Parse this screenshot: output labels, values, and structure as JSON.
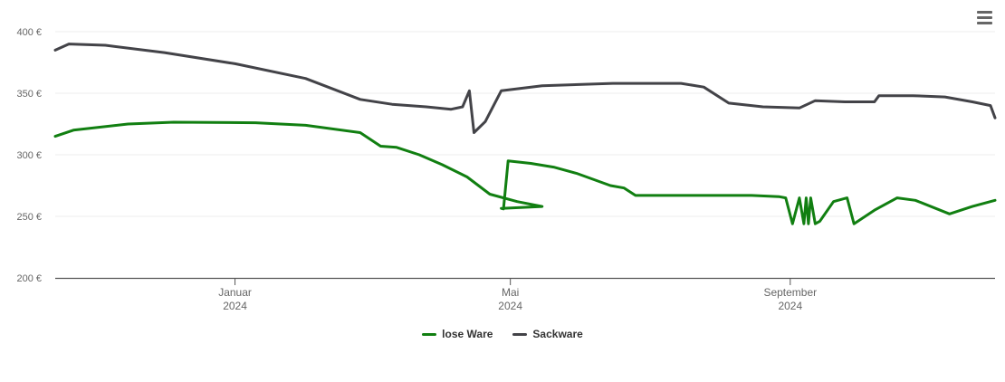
{
  "chart_data": {
    "type": "line",
    "y_ticks": [
      "200 €",
      "250 €",
      "300 €",
      "350 €",
      "400 €"
    ],
    "ylim": [
      200,
      400
    ],
    "xlim": [
      "2023-10-14",
      "2024-11-30"
    ],
    "x_ticks": [
      {
        "date": "2024-01-01",
        "month": "Januar",
        "year": "2024"
      },
      {
        "date": "2024-05-01",
        "month": "Mai",
        "year": "2024"
      },
      {
        "date": "2024-09-01",
        "month": "September",
        "year": "2024"
      }
    ],
    "grid": true,
    "legend_position": "bottom-center",
    "series": [
      {
        "name": "lose Ware",
        "color": "#117f11",
        "points": [
          [
            "2023-10-14",
            315
          ],
          [
            "2023-10-22",
            320
          ],
          [
            "2023-11-15",
            325
          ],
          [
            "2023-12-05",
            326.5
          ],
          [
            "2024-01-10",
            326
          ],
          [
            "2024-02-01",
            324
          ],
          [
            "2024-02-25",
            318
          ],
          [
            "2024-03-05",
            307
          ],
          [
            "2024-03-12",
            306
          ],
          [
            "2024-03-22",
            300
          ],
          [
            "2024-04-01",
            292
          ],
          [
            "2024-04-12",
            282
          ],
          [
            "2024-04-22",
            268
          ],
          [
            "2024-05-04",
            262
          ],
          [
            "2024-05-15",
            258
          ],
          [
            "2024-04-27",
            256.5
          ],
          [
            "2024-04-28",
            256
          ],
          [
            "2024-04-30",
            295
          ],
          [
            "2024-05-10",
            293
          ],
          [
            "2024-05-20",
            290
          ],
          [
            "2024-05-30",
            285
          ],
          [
            "2024-06-14",
            275
          ],
          [
            "2024-06-20",
            273
          ],
          [
            "2024-06-25",
            267
          ],
          [
            "2024-07-15",
            267
          ],
          [
            "2024-08-15",
            267
          ],
          [
            "2024-08-27",
            266
          ],
          [
            "2024-08-30",
            265
          ],
          [
            "2024-09-02",
            244
          ],
          [
            "2024-09-05",
            265
          ],
          [
            "2024-09-07",
            244
          ],
          [
            "2024-09-08",
            265
          ],
          [
            "2024-09-09",
            244
          ],
          [
            "2024-09-10",
            265
          ],
          [
            "2024-09-12",
            244
          ],
          [
            "2024-09-14",
            246
          ],
          [
            "2024-09-20",
            262
          ],
          [
            "2024-09-26",
            265
          ],
          [
            "2024-09-29",
            244
          ],
          [
            "2024-10-08",
            255
          ],
          [
            "2024-10-18",
            265
          ],
          [
            "2024-10-26",
            263
          ],
          [
            "2024-11-10",
            252
          ],
          [
            "2024-11-20",
            258
          ],
          [
            "2024-11-30",
            263
          ]
        ]
      },
      {
        "name": "Sackware",
        "color": "#434348",
        "points": [
          [
            "2023-10-14",
            385
          ],
          [
            "2023-10-20",
            390
          ],
          [
            "2023-11-05",
            389
          ],
          [
            "2023-12-01",
            383
          ],
          [
            "2024-01-01",
            374
          ],
          [
            "2024-02-01",
            362
          ],
          [
            "2024-02-25",
            345
          ],
          [
            "2024-03-10",
            341
          ],
          [
            "2024-03-25",
            339
          ],
          [
            "2024-04-05",
            337
          ],
          [
            "2024-04-10",
            339
          ],
          [
            "2024-04-13",
            352
          ],
          [
            "2024-04-15",
            318
          ],
          [
            "2024-04-20",
            327
          ],
          [
            "2024-04-27",
            352
          ],
          [
            "2024-05-15",
            356
          ],
          [
            "2024-06-15",
            358
          ],
          [
            "2024-07-15",
            358
          ],
          [
            "2024-07-25",
            355
          ],
          [
            "2024-08-05",
            342
          ],
          [
            "2024-08-20",
            339
          ],
          [
            "2024-09-05",
            338
          ],
          [
            "2024-09-12",
            344
          ],
          [
            "2024-09-25",
            343
          ],
          [
            "2024-10-08",
            343
          ],
          [
            "2024-10-10",
            348
          ],
          [
            "2024-10-25",
            348
          ],
          [
            "2024-11-08",
            347
          ],
          [
            "2024-11-20",
            343
          ],
          [
            "2024-11-28",
            340
          ],
          [
            "2024-11-30",
            330
          ]
        ]
      }
    ]
  },
  "legend": {
    "items": [
      {
        "label": "lose Ware",
        "color": "#117f11"
      },
      {
        "label": "Sackware",
        "color": "#434348"
      }
    ]
  },
  "menu": {
    "icon": "hamburger-menu-icon"
  }
}
